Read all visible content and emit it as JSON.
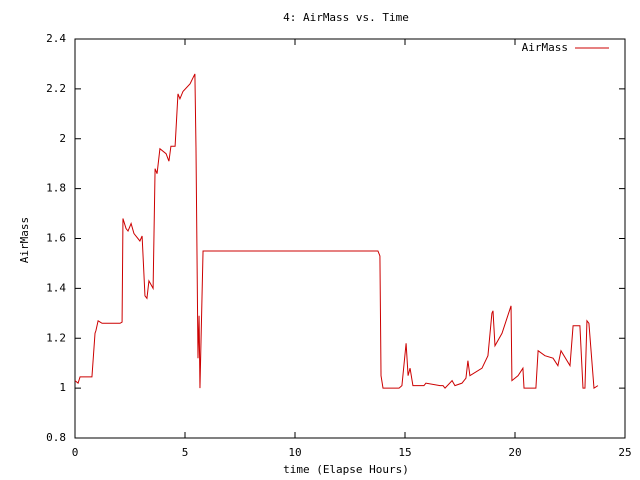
{
  "chart_data": {
    "type": "line",
    "title": "4: AirMass vs. Time",
    "xlabel": "time (Elapse Hours)",
    "ylabel": "AirMass",
    "xlim": [
      0,
      25
    ],
    "xticks": [
      0,
      5,
      10,
      15,
      20,
      25
    ],
    "ylim": [
      0.8,
      2.4
    ],
    "yticks": [
      0.8,
      1,
      1.2,
      1.4,
      1.6,
      1.8,
      2,
      2.2,
      2.4
    ],
    "legend": "top-right",
    "series": [
      {
        "name": "AirMass",
        "color": "#cc0000",
        "x": [
          0,
          0.14,
          0.23,
          0.77,
          0.91,
          0.95,
          1.05,
          1.23,
          2.05,
          2.14,
          2.18,
          2.32,
          2.41,
          2.55,
          2.68,
          2.95,
          3.05,
          3.18,
          3.27,
          3.36,
          3.55,
          3.64,
          3.73,
          3.86,
          4.14,
          4.27,
          4.36,
          4.55,
          4.68,
          4.77,
          4.91,
          5.23,
          5.45,
          5.5,
          5.59,
          5.64,
          5.68,
          5.82,
          13.77,
          13.86,
          13.91,
          14.0,
          14.73,
          14.86,
          15.05,
          15.14,
          15.23,
          15.36,
          15.86,
          15.95,
          16.59,
          16.73,
          16.82,
          17.14,
          17.27,
          17.59,
          17.77,
          17.86,
          17.95,
          18.5,
          18.77,
          18.95,
          19.0,
          19.09,
          19.41,
          19.82,
          19.86,
          20.14,
          20.36,
          20.41,
          20.95,
          21.05,
          21.36,
          21.73,
          21.95,
          22.09,
          22.5,
          22.64,
          22.95,
          23.09,
          23.18,
          23.27,
          23.36,
          23.59,
          23.77
        ],
        "values": [
          1.03,
          1.02,
          1.045,
          1.045,
          1.22,
          1.23,
          1.27,
          1.26,
          1.26,
          1.265,
          1.68,
          1.64,
          1.63,
          1.66,
          1.62,
          1.59,
          1.61,
          1.37,
          1.36,
          1.43,
          1.4,
          1.88,
          1.86,
          1.96,
          1.94,
          1.91,
          1.97,
          1.97,
          2.18,
          2.16,
          2.19,
          2.22,
          2.26,
          1.96,
          1.12,
          1.29,
          1.0,
          1.55,
          1.55,
          1.53,
          1.05,
          1.0,
          1.0,
          1.01,
          1.18,
          1.05,
          1.08,
          1.01,
          1.01,
          1.02,
          1.01,
          1.01,
          1.0,
          1.03,
          1.01,
          1.02,
          1.04,
          1.11,
          1.05,
          1.08,
          1.13,
          1.3,
          1.31,
          1.17,
          1.22,
          1.33,
          1.03,
          1.05,
          1.08,
          1.0,
          1.0,
          1.15,
          1.13,
          1.12,
          1.09,
          1.15,
          1.09,
          1.25,
          1.25,
          1.0,
          1.0,
          1.27,
          1.26,
          1.0,
          1.01
        ]
      }
    ]
  }
}
